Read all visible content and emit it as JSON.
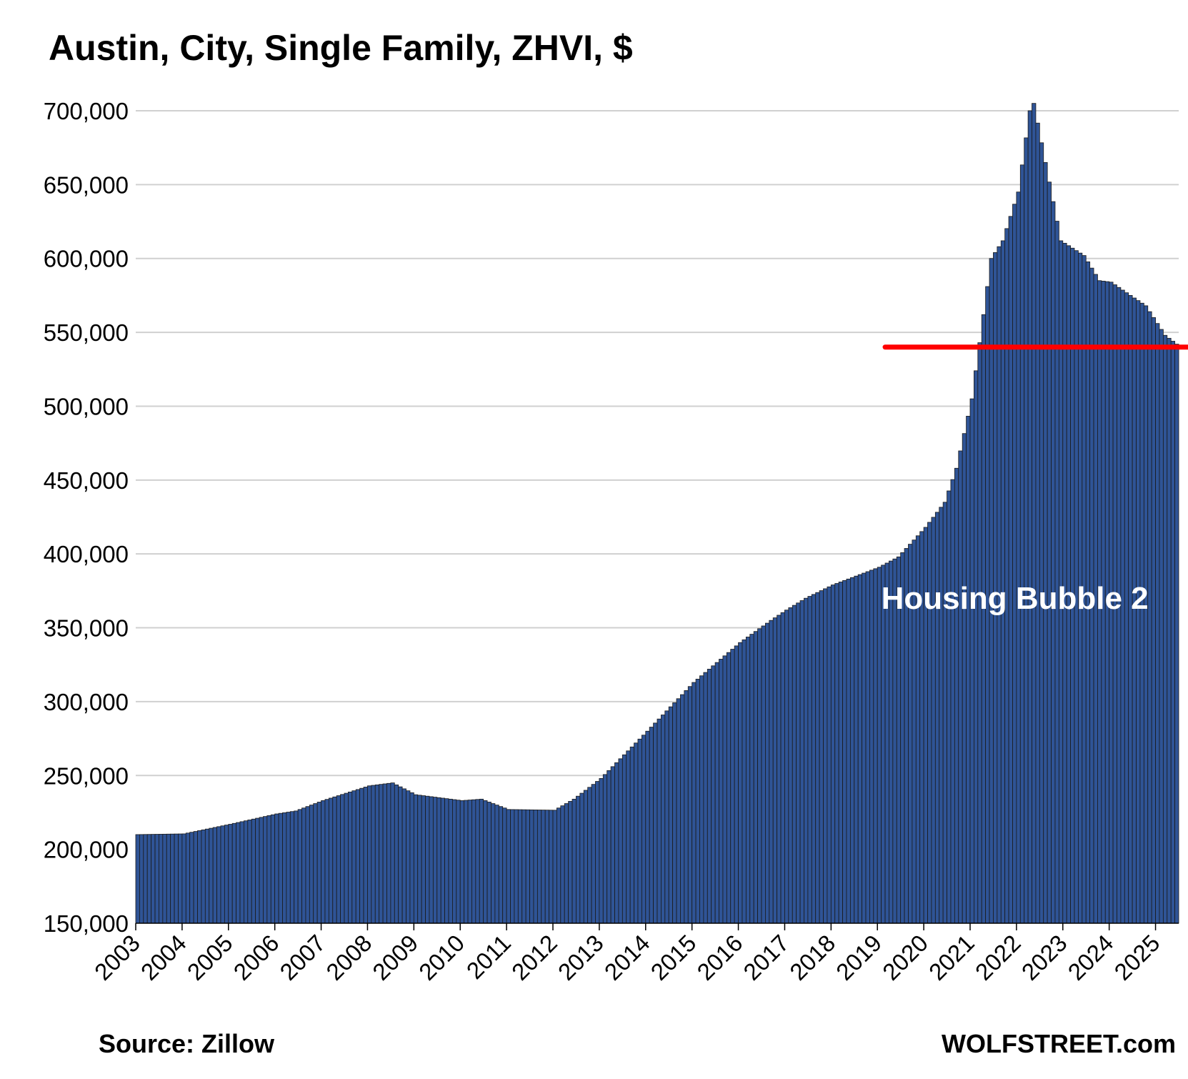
{
  "title": "Austin, City, Single Family, ZHVI, $",
  "source": "Source: Zillow",
  "brand": "WOLFSTREET.com",
  "colors": {
    "bar": "#2f5496",
    "bar_edge": "#1a1a1a",
    "grid": "#d0d0d0",
    "reference_line": "#ff0000",
    "annotation_text": "#ffffff"
  },
  "chart_data": {
    "type": "bar",
    "frequency": "monthly",
    "start": "2003-01",
    "xlabel": "",
    "ylabel": "",
    "ylim": [
      150000,
      700000
    ],
    "yticks": [
      "150,000",
      "200,000",
      "250,000",
      "300,000",
      "350,000",
      "400,000",
      "450,000",
      "500,000",
      "550,000",
      "600,000",
      "650,000",
      "700,000"
    ],
    "xticks": [
      "2003",
      "2004",
      "2005",
      "2006",
      "2007",
      "2008",
      "2009",
      "2010",
      "2011",
      "2012",
      "2013",
      "2014",
      "2015",
      "2016",
      "2017",
      "2018",
      "2019",
      "2020",
      "2021",
      "2022",
      "2023",
      "2024",
      "2025"
    ],
    "grid": true,
    "reference_line": {
      "value": 540000,
      "from": "2019-03"
    },
    "annotation": "Housing Bubble 2",
    "anchors": [
      [
        "2003-01",
        210000
      ],
      [
        "2004-01",
        210500
      ],
      [
        "2005-01",
        217000
      ],
      [
        "2006-01",
        224000
      ],
      [
        "2006-06",
        226000
      ],
      [
        "2007-01",
        233000
      ],
      [
        "2008-01",
        243000
      ],
      [
        "2008-07",
        245000
      ],
      [
        "2009-01",
        237000
      ],
      [
        "2010-01",
        233000
      ],
      [
        "2010-06",
        234000
      ],
      [
        "2011-01",
        227000
      ],
      [
        "2012-01",
        226500
      ],
      [
        "2012-06",
        234000
      ],
      [
        "2013-01",
        248000
      ],
      [
        "2014-01",
        280000
      ],
      [
        "2015-01",
        313000
      ],
      [
        "2016-01",
        340000
      ],
      [
        "2016-09",
        355000
      ],
      [
        "2017-01",
        362000
      ],
      [
        "2017-06",
        370000
      ],
      [
        "2018-01",
        379000
      ],
      [
        "2019-01",
        391000
      ],
      [
        "2019-06",
        398000
      ],
      [
        "2020-01",
        418000
      ],
      [
        "2020-06",
        435000
      ],
      [
        "2020-09",
        458000
      ],
      [
        "2021-01",
        505000
      ],
      [
        "2021-06",
        600000
      ],
      [
        "2021-09",
        612000
      ],
      [
        "2022-01",
        645000
      ],
      [
        "2022-04",
        700000
      ],
      [
        "2022-05",
        705000
      ],
      [
        "2022-08",
        665000
      ],
      [
        "2022-12",
        612000
      ],
      [
        "2023-06",
        602000
      ],
      [
        "2023-10",
        585000
      ],
      [
        "2024-01",
        584000
      ],
      [
        "2024-06",
        575000
      ],
      [
        "2024-10",
        568000
      ],
      [
        "2025-03",
        548000
      ],
      [
        "2025-06",
        542000
      ]
    ]
  }
}
